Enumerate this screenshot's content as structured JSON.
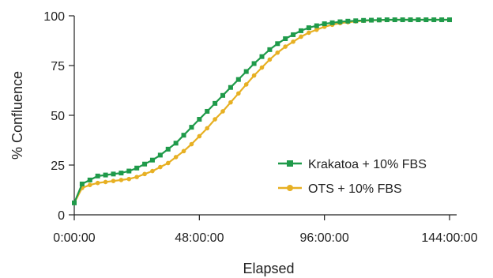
{
  "chart_data": {
    "type": "line",
    "xlabel": "Elapsed",
    "ylabel": "% Confluence",
    "xlim": [
      0,
      146
    ],
    "ylim": [
      0,
      100
    ],
    "x_ticks": [
      0,
      48,
      96,
      144
    ],
    "x_tick_labels": [
      "0:00:00",
      "48:00:00",
      "96:00:00",
      "144:00:00"
    ],
    "y_ticks": [
      0,
      25,
      50,
      75,
      100
    ],
    "y_tick_labels": [
      "0",
      "25",
      "50",
      "75",
      "100"
    ],
    "grid": false,
    "legend_position": "right",
    "series": [
      {
        "name": "Krakatoa + 10% FBS",
        "color": "#1f9a4a",
        "marker": "square",
        "x": [
          0,
          3,
          6,
          9,
          12,
          15,
          18,
          21,
          24,
          27,
          30,
          33,
          36,
          39,
          42,
          45,
          48,
          51,
          54,
          57,
          60,
          63,
          66,
          69,
          72,
          75,
          78,
          81,
          84,
          87,
          90,
          93,
          96,
          99,
          102,
          105,
          108,
          111,
          114,
          117,
          120,
          123,
          126,
          129,
          132,
          135,
          138,
          141,
          144
        ],
        "values": [
          6,
          15.5,
          17.5,
          19.5,
          20,
          20.5,
          21,
          22,
          23.5,
          25.5,
          27.5,
          30,
          33,
          36,
          40,
          44,
          48,
          52,
          56,
          60,
          64,
          68,
          72,
          76,
          79.5,
          83,
          86,
          88.5,
          90.5,
          92.5,
          94,
          95,
          96,
          96.5,
          97,
          97.3,
          97.5,
          97.7,
          97.8,
          97.9,
          98,
          98,
          98,
          98,
          98,
          98,
          98,
          98,
          98
        ]
      },
      {
        "name": "OTS + 10% FBS",
        "color": "#e7b023",
        "marker": "circle",
        "x": [
          0,
          3,
          6,
          9,
          12,
          15,
          18,
          21,
          24,
          27,
          30,
          33,
          36,
          39,
          42,
          45,
          48,
          51,
          54,
          57,
          60,
          63,
          66,
          69,
          72,
          75,
          78,
          81,
          84,
          87,
          90,
          93,
          96,
          99,
          102,
          105,
          108,
          111,
          114,
          117,
          120,
          123,
          126,
          129,
          132,
          135,
          138,
          141,
          144
        ],
        "values": [
          6,
          13.5,
          15,
          16,
          16.5,
          17,
          17.5,
          18,
          19,
          20.5,
          22,
          24,
          26,
          29,
          32,
          35.5,
          39.5,
          43.5,
          48,
          52,
          56.5,
          61,
          65.5,
          70,
          74,
          78,
          81.5,
          84.5,
          87,
          89.5,
          91.5,
          93,
          94.5,
          95.5,
          96.3,
          96.8,
          97.2,
          97.5,
          97.7,
          97.8,
          97.9,
          98,
          98,
          98,
          98,
          98,
          98,
          98,
          98
        ]
      }
    ]
  }
}
